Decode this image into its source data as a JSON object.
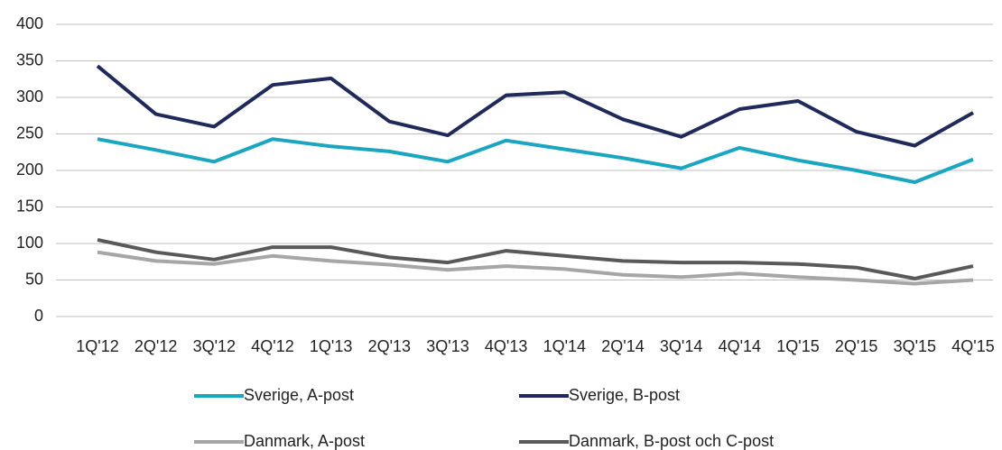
{
  "chart_data": {
    "type": "line",
    "categories": [
      "1Q'12",
      "2Q'12",
      "3Q'12",
      "4Q'12",
      "1Q'13",
      "2Q'13",
      "3Q'13",
      "4Q'13",
      "1Q'14",
      "2Q'14",
      "3Q'14",
      "4Q'14",
      "1Q'15",
      "2Q'15",
      "3Q'15",
      "4Q'15"
    ],
    "series": [
      {
        "name": "Sverige, A-post",
        "color": "#1aa5c0",
        "values": [
          243,
          228,
          212,
          243,
          233,
          226,
          212,
          241,
          229,
          217,
          203,
          231,
          214,
          200,
          184,
          215
        ]
      },
      {
        "name": "Sverige, B-post",
        "color": "#1f2a5a",
        "values": [
          343,
          277,
          260,
          317,
          326,
          267,
          248,
          303,
          307,
          270,
          246,
          284,
          295,
          253,
          234,
          279
        ]
      },
      {
        "name": "Danmark, A-post",
        "color": "#a6a6a6",
        "values": [
          88,
          76,
          72,
          83,
          76,
          71,
          64,
          69,
          65,
          57,
          54,
          59,
          54,
          50,
          45,
          50
        ]
      },
      {
        "name": "Danmark, B-post och C-post",
        "color": "#595959",
        "values": [
          105,
          88,
          78,
          95,
          95,
          81,
          74,
          90,
          83,
          76,
          74,
          74,
          72,
          67,
          52,
          69
        ]
      }
    ],
    "ylim": [
      0,
      400
    ],
    "yticks": [
      0,
      50,
      100,
      150,
      200,
      250,
      300,
      350,
      400
    ],
    "grid": true,
    "legend": "bottom"
  }
}
